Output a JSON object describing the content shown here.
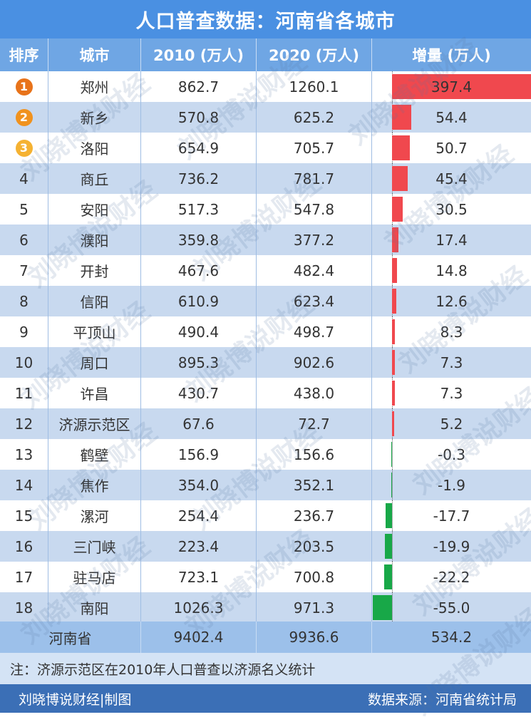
{
  "title": "人口普查数据：河南省各城市",
  "headers": [
    "排序",
    "城市",
    "2010 (万人)",
    "2020 (万人)",
    "增量 (万人)"
  ],
  "chart_data": {
    "type": "table",
    "rows": [
      {
        "rank": "1",
        "city": "郑州",
        "y2010": "862.7",
        "y2020": "1260.1",
        "increase": 397.4,
        "increase_label": "397.4"
      },
      {
        "rank": "2",
        "city": "新乡",
        "y2010": "570.8",
        "y2020": "625.2",
        "increase": 54.4,
        "increase_label": "54.4"
      },
      {
        "rank": "3",
        "city": "洛阳",
        "y2010": "654.9",
        "y2020": "705.7",
        "increase": 50.7,
        "increase_label": "50.7"
      },
      {
        "rank": "4",
        "city": "商丘",
        "y2010": "736.2",
        "y2020": "781.7",
        "increase": 45.4,
        "increase_label": "45.4"
      },
      {
        "rank": "5",
        "city": "安阳",
        "y2010": "517.3",
        "y2020": "547.8",
        "increase": 30.5,
        "increase_label": "30.5"
      },
      {
        "rank": "6",
        "city": "濮阳",
        "y2010": "359.8",
        "y2020": "377.2",
        "increase": 17.4,
        "increase_label": "17.4"
      },
      {
        "rank": "7",
        "city": "开封",
        "y2010": "467.6",
        "y2020": "482.4",
        "increase": 14.8,
        "increase_label": "14.8"
      },
      {
        "rank": "8",
        "city": "信阳",
        "y2010": "610.9",
        "y2020": "623.4",
        "increase": 12.6,
        "increase_label": "12.6"
      },
      {
        "rank": "9",
        "city": "平顶山",
        "y2010": "490.4",
        "y2020": "498.7",
        "increase": 8.3,
        "increase_label": "8.3"
      },
      {
        "rank": "10",
        "city": "周口",
        "y2010": "895.3",
        "y2020": "902.6",
        "increase": 7.3,
        "increase_label": "7.3"
      },
      {
        "rank": "11",
        "city": "许昌",
        "y2010": "430.7",
        "y2020": "438.0",
        "increase": 7.3,
        "increase_label": "7.3"
      },
      {
        "rank": "12",
        "city": "济源示范区",
        "y2010": "67.6",
        "y2020": "72.7",
        "increase": 5.2,
        "increase_label": "5.2"
      },
      {
        "rank": "13",
        "city": "鹤壁",
        "y2010": "156.9",
        "y2020": "156.6",
        "increase": -0.3,
        "increase_label": "-0.3"
      },
      {
        "rank": "14",
        "city": "焦作",
        "y2010": "354.0",
        "y2020": "352.1",
        "increase": -1.9,
        "increase_label": "-1.9"
      },
      {
        "rank": "15",
        "city": "漯河",
        "y2010": "254.4",
        "y2020": "236.7",
        "increase": -17.7,
        "increase_label": "-17.7"
      },
      {
        "rank": "16",
        "city": "三门峡",
        "y2010": "223.4",
        "y2020": "203.5",
        "increase": -19.9,
        "increase_label": "-19.9"
      },
      {
        "rank": "17",
        "city": "驻马店",
        "y2010": "723.1",
        "y2020": "700.8",
        "increase": -22.2,
        "increase_label": "-22.2"
      },
      {
        "rank": "18",
        "city": "南阳",
        "y2010": "1026.3",
        "y2020": "971.3",
        "increase": -55.0,
        "increase_label": "-55.0"
      }
    ],
    "total": {
      "label": "河南省",
      "y2010": "9402.4",
      "y2020": "9936.6",
      "increase": "534.2"
    }
  },
  "note": "注：济源示范区在2010年人口普查以济源名义统计",
  "footer": {
    "left": "刘晓博说财经|制图",
    "right": "数据来源：河南省统计局"
  },
  "watermark": "刘晓博说财经",
  "colors": {
    "positive_bar": "#f0484e",
    "negative_bar": "#18a848",
    "rank_1": "#e8731a",
    "rank_2": "#f0921e",
    "rank_3": "#f5b232",
    "title_bg": "#4a90e2",
    "header_bg": "#6fa6e4"
  }
}
